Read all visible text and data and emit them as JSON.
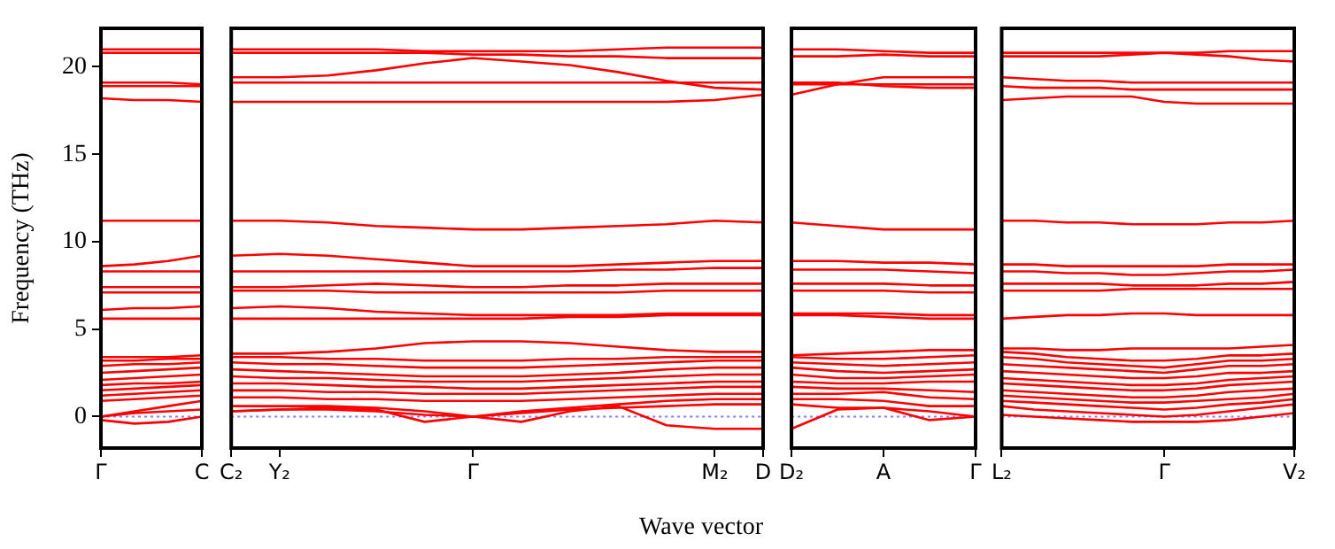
{
  "chart_data": [
    {
      "type": "line",
      "ylabel": "Frequency (THz)",
      "color": "#ff0000",
      "marker": "none",
      "legend": false,
      "categories": [
        "Γ",
        null,
        null,
        "C"
      ],
      "ylim": [
        -1.8,
        22.2
      ],
      "yticks": [
        0,
        5,
        10,
        15,
        20
      ],
      "ref_lines": [
        {
          "axis": "y",
          "value": 0,
          "color": "#7f7fff",
          "line_style": "dotted"
        }
      ],
      "series": [
        {
          "values": [
            21.0,
            21.0,
            21.0,
            21.0
          ]
        },
        {
          "values": [
            20.8,
            20.8,
            20.8,
            20.8
          ]
        },
        {
          "values": [
            19.1,
            19.1,
            19.1,
            19.0
          ]
        },
        {
          "values": [
            18.9,
            18.9,
            18.9,
            18.9
          ]
        },
        {
          "values": [
            18.2,
            18.1,
            18.1,
            18.0
          ]
        },
        {
          "values": [
            11.2,
            11.2,
            11.2,
            11.2
          ]
        },
        {
          "values": [
            8.6,
            8.7,
            8.9,
            9.2
          ]
        },
        {
          "values": [
            8.3,
            8.3,
            8.3,
            8.3
          ]
        },
        {
          "values": [
            7.4,
            7.4,
            7.4,
            7.4
          ]
        },
        {
          "values": [
            7.1,
            7.1,
            7.1,
            7.1
          ]
        },
        {
          "values": [
            6.1,
            6.2,
            6.2,
            6.3
          ]
        },
        {
          "values": [
            5.6,
            5.6,
            5.6,
            5.6
          ]
        },
        {
          "values": [
            3.4,
            3.4,
            3.4,
            3.5
          ]
        },
        {
          "values": [
            3.2,
            3.2,
            3.3,
            3.3
          ]
        },
        {
          "values": [
            2.9,
            3.0,
            3.0,
            3.1
          ]
        },
        {
          "values": [
            2.5,
            2.6,
            2.7,
            2.8
          ]
        },
        {
          "values": [
            2.1,
            2.2,
            2.3,
            2.4
          ]
        },
        {
          "values": [
            1.8,
            1.9,
            1.9,
            2.0
          ]
        },
        {
          "values": [
            1.5,
            1.6,
            1.7,
            1.8
          ]
        },
        {
          "values": [
            1.2,
            1.3,
            1.4,
            1.5
          ]
        },
        {
          "values": [
            0.9,
            1.0,
            1.1,
            1.2
          ]
        },
        {
          "values": [
            0,
            0.3,
            0.6,
            0.9
          ]
        },
        {
          "values": [
            0,
            0.2,
            0.3,
            0.4
          ]
        },
        {
          "values": [
            -0.2,
            -0.4,
            -0.3,
            0.0
          ]
        }
      ]
    },
    {
      "type": "line",
      "xlabel": "Wave vector",
      "color": "#ff0000",
      "marker": "none",
      "legend": false,
      "tick_labels": "x",
      "categories": [
        "C₂",
        "Y₂",
        null,
        null,
        null,
        "Γ",
        null,
        null,
        null,
        null,
        "M₂",
        "D"
      ],
      "ylim": [
        -1.8,
        22.2
      ],
      "yticks": [
        0,
        5,
        10,
        15,
        20
      ],
      "ref_lines": [
        {
          "axis": "y",
          "value": 0,
          "color": "#7f7fff",
          "line_style": "dotted"
        }
      ],
      "series": [
        {
          "values": [
            21.0,
            21.0,
            21.0,
            21.0,
            20.9,
            20.9,
            20.9,
            20.9,
            21.0,
            21.1,
            21.1,
            21.1
          ]
        },
        {
          "values": [
            20.8,
            20.8,
            20.8,
            20.8,
            20.8,
            20.7,
            20.7,
            20.6,
            20.6,
            20.5,
            20.5,
            20.5
          ]
        },
        {
          "values": [
            19.4,
            19.4,
            19.5,
            19.8,
            20.2,
            20.5,
            20.3,
            20.1,
            19.7,
            19.2,
            18.8,
            18.7
          ]
        },
        {
          "values": [
            19.1,
            19.1,
            19.1,
            19.1,
            19.1,
            19.1,
            19.1,
            19.1,
            19.1,
            19.1,
            19.1,
            19.1
          ]
        },
        {
          "values": [
            18.0,
            18.0,
            18.0,
            18.0,
            18.0,
            18.0,
            18.0,
            18.0,
            18.0,
            18.0,
            18.1,
            18.4
          ]
        },
        {
          "values": [
            11.2,
            11.2,
            11.1,
            10.9,
            10.8,
            10.7,
            10.7,
            10.8,
            10.9,
            11.0,
            11.2,
            11.1
          ]
        },
        {
          "values": [
            9.2,
            9.3,
            9.2,
            9.0,
            8.8,
            8.6,
            8.6,
            8.6,
            8.7,
            8.8,
            8.9,
            8.9
          ]
        },
        {
          "values": [
            8.3,
            8.3,
            8.3,
            8.3,
            8.3,
            8.3,
            8.3,
            8.3,
            8.4,
            8.4,
            8.5,
            8.5
          ]
        },
        {
          "values": [
            7.4,
            7.4,
            7.5,
            7.6,
            7.5,
            7.4,
            7.4,
            7.5,
            7.5,
            7.6,
            7.6,
            7.6
          ]
        },
        {
          "values": [
            7.2,
            7.2,
            7.2,
            7.1,
            7.1,
            7.1,
            7.1,
            7.1,
            7.1,
            7.2,
            7.2,
            7.2
          ]
        },
        {
          "values": [
            6.2,
            6.3,
            6.2,
            6.0,
            5.9,
            5.8,
            5.8,
            5.8,
            5.8,
            5.9,
            5.9,
            5.9
          ]
        },
        {
          "values": [
            5.6,
            5.6,
            5.6,
            5.6,
            5.6,
            5.6,
            5.6,
            5.7,
            5.7,
            5.8,
            5.8,
            5.8
          ]
        },
        {
          "values": [
            3.6,
            3.6,
            3.7,
            3.9,
            4.2,
            4.3,
            4.3,
            4.2,
            4.0,
            3.8,
            3.7,
            3.7
          ]
        },
        {
          "values": [
            3.4,
            3.4,
            3.3,
            3.3,
            3.2,
            3.2,
            3.2,
            3.3,
            3.3,
            3.4,
            3.4,
            3.4
          ]
        },
        {
          "values": [
            3.1,
            3.0,
            3.0,
            2.9,
            2.8,
            2.8,
            2.8,
            2.9,
            3.0,
            3.1,
            3.2,
            3.2
          ]
        },
        {
          "values": [
            2.7,
            2.6,
            2.5,
            2.4,
            2.3,
            2.3,
            2.3,
            2.4,
            2.5,
            2.7,
            2.8,
            2.8
          ]
        },
        {
          "values": [
            2.3,
            2.2,
            2.2,
            2.1,
            2.0,
            2.0,
            2.0,
            2.1,
            2.2,
            2.3,
            2.4,
            2.4
          ]
        },
        {
          "values": [
            1.9,
            1.9,
            1.8,
            1.7,
            1.7,
            1.6,
            1.6,
            1.7,
            1.8,
            1.9,
            2.0,
            2.0
          ]
        },
        {
          "values": [
            1.5,
            1.5,
            1.4,
            1.4,
            1.3,
            1.3,
            1.3,
            1.4,
            1.5,
            1.6,
            1.7,
            1.7
          ]
        },
        {
          "values": [
            1.1,
            1.1,
            1.0,
            1.0,
            0.9,
            0.9,
            0.9,
            1.0,
            1.1,
            1.2,
            1.3,
            1.3
          ]
        },
        {
          "values": [
            0.6,
            0.6,
            0.6,
            0.5,
            0.3,
            0,
            0.3,
            0.5,
            0.7,
            0.9,
            1.0,
            1.0
          ]
        },
        {
          "values": [
            0.3,
            0.4,
            0.4,
            0.3,
            0.1,
            0,
            0.2,
            0.4,
            0.5,
            0.6,
            0.7,
            0.7
          ]
        },
        {
          "values": [
            0.3,
            0.4,
            0.5,
            0.4,
            -0.3,
            0,
            -0.3,
            0.3,
            0.6,
            -0.5,
            -0.7,
            -0.7
          ]
        }
      ]
    },
    {
      "type": "line",
      "color": "#ff0000",
      "marker": "none",
      "legend": false,
      "tick_labels": "x",
      "categories": [
        "D₂",
        null,
        "A",
        null,
        "Γ"
      ],
      "ylim": [
        -1.8,
        22.2
      ],
      "yticks": [
        0,
        5,
        10,
        15,
        20
      ],
      "ref_lines": [
        {
          "axis": "y",
          "value": 0,
          "color": "#7f7fff",
          "line_style": "dotted"
        }
      ],
      "series": [
        {
          "values": [
            21.0,
            21.0,
            20.9,
            20.8,
            20.8
          ]
        },
        {
          "values": [
            20.6,
            20.6,
            20.7,
            20.6,
            20.6
          ]
        },
        {
          "values": [
            18.4,
            19.0,
            19.4,
            19.4,
            19.4
          ]
        },
        {
          "values": [
            19.0,
            19.0,
            19.0,
            19.0,
            19.0
          ]
        },
        {
          "values": [
            19.1,
            19.1,
            18.9,
            18.8,
            18.8
          ]
        },
        {
          "values": [
            11.1,
            10.9,
            10.7,
            10.7,
            10.7
          ]
        },
        {
          "values": [
            8.9,
            8.9,
            8.8,
            8.8,
            8.7
          ]
        },
        {
          "values": [
            8.4,
            8.4,
            8.4,
            8.3,
            8.2
          ]
        },
        {
          "values": [
            7.6,
            7.6,
            7.6,
            7.5,
            7.5
          ]
        },
        {
          "values": [
            7.2,
            7.2,
            7.2,
            7.1,
            7.1
          ]
        },
        {
          "values": [
            5.9,
            5.9,
            5.9,
            5.8,
            5.8
          ]
        },
        {
          "values": [
            5.8,
            5.8,
            5.7,
            5.6,
            5.6
          ]
        },
        {
          "values": [
            3.5,
            3.6,
            3.7,
            3.8,
            3.8
          ]
        },
        {
          "values": [
            3.4,
            3.3,
            3.3,
            3.4,
            3.5
          ]
        },
        {
          "values": [
            3.1,
            3.0,
            2.9,
            3.0,
            3.1
          ]
        },
        {
          "values": [
            2.8,
            2.6,
            2.5,
            2.6,
            2.7
          ]
        },
        {
          "values": [
            2.4,
            2.2,
            2.2,
            2.3,
            2.4
          ]
        },
        {
          "values": [
            2.0,
            1.9,
            1.9,
            2.0,
            2.0
          ]
        },
        {
          "values": [
            1.7,
            1.6,
            1.6,
            1.5,
            1.4
          ]
        },
        {
          "values": [
            1.3,
            1.3,
            1.4,
            1.1,
            1.0
          ]
        },
        {
          "values": [
            1.0,
            1.0,
            0.9,
            0.6,
            0.6
          ]
        },
        {
          "values": [
            0.7,
            0.5,
            0.5,
            0.3,
            0
          ]
        },
        {
          "values": [
            -0.7,
            0.4,
            0.5,
            -0.2,
            0
          ]
        }
      ]
    },
    {
      "type": "line",
      "color": "#ff0000",
      "marker": "none",
      "legend": false,
      "tick_labels": "x",
      "categories": [
        "L₂",
        null,
        null,
        null,
        null,
        "Γ",
        null,
        null,
        null,
        "V₂"
      ],
      "ylim": [
        -1.8,
        22.2
      ],
      "yticks": [
        0,
        5,
        10,
        15,
        20
      ],
      "ref_lines": [
        {
          "axis": "y",
          "value": 0,
          "color": "#7f7fff",
          "line_style": "dotted"
        }
      ],
      "series": [
        {
          "values": [
            20.8,
            20.8,
            20.8,
            20.8,
            20.8,
            20.8,
            20.8,
            20.9,
            20.9,
            20.9
          ]
        },
        {
          "values": [
            20.6,
            20.6,
            20.6,
            20.6,
            20.7,
            20.8,
            20.7,
            20.6,
            20.4,
            20.3
          ]
        },
        {
          "values": [
            19.4,
            19.3,
            19.2,
            19.2,
            19.1,
            19.1,
            19.1,
            19.1,
            19.1,
            19.1
          ]
        },
        {
          "values": [
            18.9,
            18.8,
            18.8,
            18.8,
            18.7,
            18.7,
            18.7,
            18.7,
            18.7,
            18.7
          ]
        },
        {
          "values": [
            18.1,
            18.2,
            18.3,
            18.3,
            18.3,
            18.0,
            17.9,
            17.9,
            17.9,
            17.9
          ]
        },
        {
          "values": [
            11.2,
            11.2,
            11.1,
            11.1,
            11.0,
            11.0,
            11.0,
            11.1,
            11.1,
            11.2
          ]
        },
        {
          "values": [
            8.7,
            8.7,
            8.6,
            8.6,
            8.6,
            8.6,
            8.6,
            8.7,
            8.7,
            8.7
          ]
        },
        {
          "values": [
            8.3,
            8.3,
            8.2,
            8.2,
            8.1,
            8.1,
            8.2,
            8.3,
            8.3,
            8.4
          ]
        },
        {
          "values": [
            7.6,
            7.6,
            7.6,
            7.6,
            7.5,
            7.5,
            7.5,
            7.6,
            7.6,
            7.7
          ]
        },
        {
          "values": [
            7.2,
            7.2,
            7.2,
            7.2,
            7.3,
            7.3,
            7.3,
            7.3,
            7.3,
            7.3
          ]
        },
        {
          "values": [
            5.6,
            5.7,
            5.8,
            5.8,
            5.9,
            5.9,
            5.8,
            5.8,
            5.8,
            5.8
          ]
        },
        {
          "values": [
            3.9,
            3.9,
            3.8,
            3.8,
            3.9,
            3.9,
            3.9,
            3.9,
            4.0,
            4.1
          ]
        },
        {
          "values": [
            3.7,
            3.6,
            3.4,
            3.3,
            3.2,
            3.2,
            3.3,
            3.5,
            3.5,
            3.6
          ]
        },
        {
          "values": [
            3.4,
            3.3,
            3.1,
            3.0,
            2.9,
            2.8,
            3.0,
            3.2,
            3.2,
            3.3
          ]
        },
        {
          "values": [
            3.0,
            2.9,
            2.8,
            2.7,
            2.6,
            2.5,
            2.7,
            2.9,
            2.9,
            3.0
          ]
        },
        {
          "values": [
            2.6,
            2.5,
            2.4,
            2.3,
            2.2,
            2.2,
            2.3,
            2.5,
            2.5,
            2.6
          ]
        },
        {
          "values": [
            2.2,
            2.1,
            2.0,
            1.9,
            1.8,
            1.8,
            1.9,
            2.1,
            2.2,
            2.3
          ]
        },
        {
          "values": [
            1.9,
            1.8,
            1.7,
            1.6,
            1.5,
            1.5,
            1.6,
            1.8,
            1.9,
            2.0
          ]
        },
        {
          "values": [
            1.5,
            1.4,
            1.3,
            1.2,
            1.1,
            1.1,
            1.2,
            1.4,
            1.5,
            1.6
          ]
        },
        {
          "values": [
            1.2,
            1.1,
            1.0,
            0.9,
            0.8,
            0.8,
            0.9,
            1.0,
            1.1,
            1.3
          ]
        },
        {
          "values": [
            0.9,
            0.8,
            0.7,
            0.6,
            0.5,
            0.4,
            0.5,
            0.7,
            0.8,
            1.0
          ]
        },
        {
          "values": [
            0.6,
            0.4,
            0.3,
            0.2,
            0.1,
            0,
            0.1,
            0.3,
            0.5,
            0.7
          ]
        },
        {
          "values": [
            0.1,
            0.0,
            -0.1,
            -0.2,
            -0.3,
            -0.3,
            -0.3,
            -0.2,
            0.0,
            0.2
          ]
        }
      ]
    }
  ]
}
